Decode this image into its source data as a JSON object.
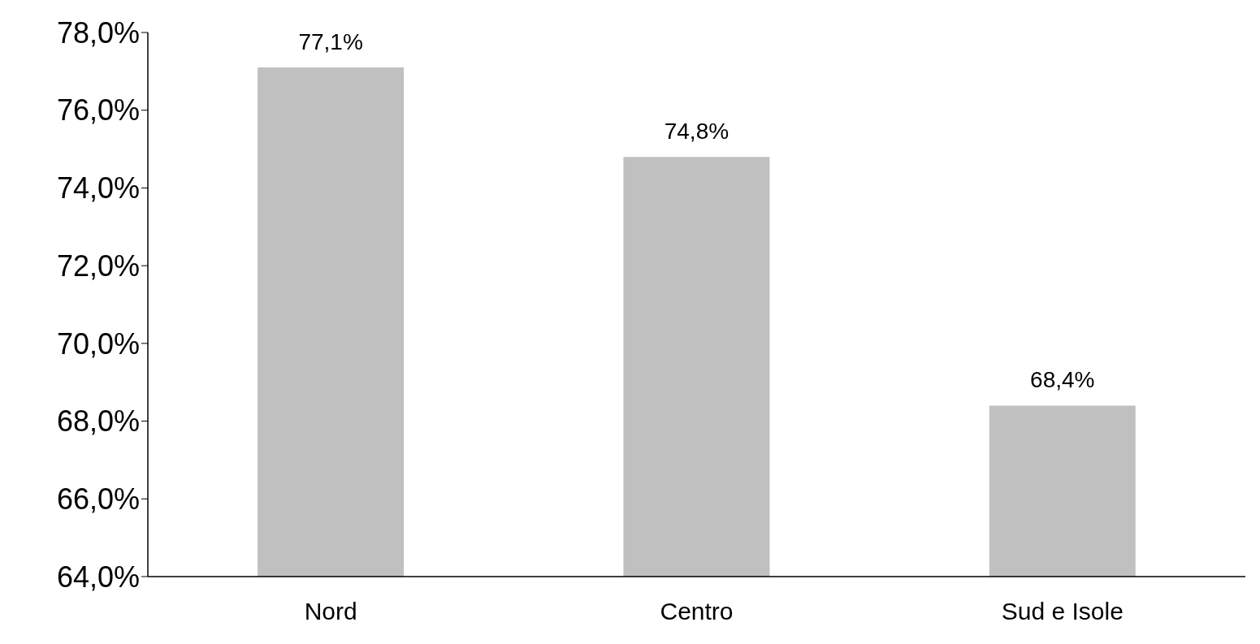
{
  "chart_data": {
    "type": "bar",
    "categories": [
      "Nord",
      "Centro",
      "Sud e Isole"
    ],
    "values": [
      77.1,
      74.8,
      68.4
    ],
    "value_labels": [
      "77,1%",
      "74,8%",
      "68,4%"
    ],
    "color": "#c0c0c0",
    "ylim": [
      64,
      78
    ],
    "yticks": [
      {
        "value": 64,
        "label": "64,0%"
      },
      {
        "value": 66,
        "label": "66,0%"
      },
      {
        "value": 68,
        "label": "68,0%"
      },
      {
        "value": 70,
        "label": "70,0%"
      },
      {
        "value": 72,
        "label": "72,0%"
      },
      {
        "value": 74,
        "label": "74,0%"
      },
      {
        "value": 76,
        "label": "76,0%"
      },
      {
        "value": 78,
        "label": "78,0%"
      }
    ],
    "grid": false
  }
}
